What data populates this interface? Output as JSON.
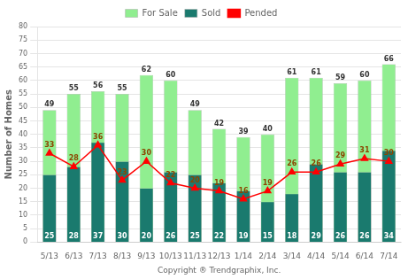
{
  "chart_data": {
    "type": "bar",
    "categories": [
      "5/13",
      "6/13",
      "7/13",
      "8/13",
      "9/13",
      "10/13",
      "11/13",
      "12/13",
      "1/14",
      "2/14",
      "3/14",
      "4/14",
      "5/14",
      "6/14",
      "7/14"
    ],
    "series": [
      {
        "name": "For Sale",
        "color": "#90EE90",
        "values": [
          49,
          55,
          56,
          55,
          62,
          60,
          49,
          42,
          39,
          40,
          61,
          61,
          59,
          60,
          66
        ]
      },
      {
        "name": "Sold",
        "color": "#1a7a6e",
        "values": [
          25,
          28,
          37,
          30,
          20,
          26,
          25,
          22,
          19,
          15,
          18,
          29,
          26,
          26,
          34
        ]
      },
      {
        "name": "Pended",
        "type": "line",
        "color": "#FF0000",
        "marker": "triangle",
        "values": [
          33,
          28,
          36,
          23,
          30,
          22,
          20,
          19,
          16,
          19,
          26,
          26,
          29,
          31,
          30
        ]
      }
    ],
    "x_label": "Copyright ® Trendgraphix, Inc.",
    "y_label": "Number of Homes",
    "ylim": [
      0,
      80
    ],
    "yticks": [
      0,
      5,
      10,
      15,
      20,
      25,
      30,
      35,
      40,
      45,
      50,
      55,
      60,
      65,
      70,
      75,
      80
    ],
    "grid": true,
    "legend": "top",
    "data_labels": true
  }
}
